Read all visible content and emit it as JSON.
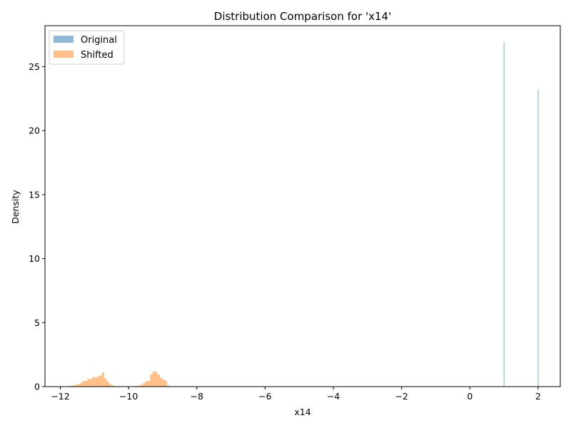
{
  "chart_data": {
    "type": "histogram",
    "title": "Distribution Comparison for 'x14'",
    "xlabel": "x14",
    "ylabel": "Density",
    "xlim": [
      -12.45,
      2.65
    ],
    "ylim": [
      0,
      28.2
    ],
    "x_ticks": [
      -12,
      -10,
      -8,
      -6,
      -4,
      -2,
      0,
      2
    ],
    "y_ticks": [
      0,
      5,
      10,
      15,
      20,
      25
    ],
    "grid": false,
    "legend_position": "top-left",
    "bin_width": 0.07,
    "series": [
      {
        "name": "Original",
        "color": "#1f77b4",
        "alpha": 0.5,
        "bins": [
          {
            "x": 1.0,
            "y": 26.9
          },
          {
            "x": 2.0,
            "y": 23.2
          }
        ]
      },
      {
        "name": "Shifted",
        "color": "#ff7f0e",
        "alpha": 0.5,
        "bins": [
          {
            "x": -11.73,
            "y": 0.05
          },
          {
            "x": -11.66,
            "y": 0.08
          },
          {
            "x": -11.59,
            "y": 0.1
          },
          {
            "x": -11.52,
            "y": 0.15
          },
          {
            "x": -11.45,
            "y": 0.2
          },
          {
            "x": -11.38,
            "y": 0.3
          },
          {
            "x": -11.31,
            "y": 0.45
          },
          {
            "x": -11.24,
            "y": 0.45
          },
          {
            "x": -11.17,
            "y": 0.6
          },
          {
            "x": -11.1,
            "y": 0.6
          },
          {
            "x": -11.03,
            "y": 0.75
          },
          {
            "x": -10.96,
            "y": 0.7
          },
          {
            "x": -10.89,
            "y": 0.8
          },
          {
            "x": -10.82,
            "y": 0.85
          },
          {
            "x": -10.75,
            "y": 1.1
          },
          {
            "x": -10.68,
            "y": 0.65
          },
          {
            "x": -10.61,
            "y": 0.4
          },
          {
            "x": -10.54,
            "y": 0.2
          },
          {
            "x": -10.47,
            "y": 0.1
          },
          {
            "x": -10.4,
            "y": 0.04
          },
          {
            "x": -9.82,
            "y": 0.04
          },
          {
            "x": -9.75,
            "y": 0.06
          },
          {
            "x": -9.68,
            "y": 0.08
          },
          {
            "x": -9.61,
            "y": 0.15
          },
          {
            "x": -9.54,
            "y": 0.3
          },
          {
            "x": -9.47,
            "y": 0.4
          },
          {
            "x": -9.4,
            "y": 0.45
          },
          {
            "x": -9.33,
            "y": 0.95
          },
          {
            "x": -9.26,
            "y": 1.2
          },
          {
            "x": -9.19,
            "y": 1.15
          },
          {
            "x": -9.12,
            "y": 0.95
          },
          {
            "x": -9.05,
            "y": 0.7
          },
          {
            "x": -8.98,
            "y": 0.55
          },
          {
            "x": -8.91,
            "y": 0.45
          },
          {
            "x": -8.84,
            "y": 0.1
          },
          {
            "x": -8.77,
            "y": 0.04
          }
        ]
      }
    ]
  }
}
